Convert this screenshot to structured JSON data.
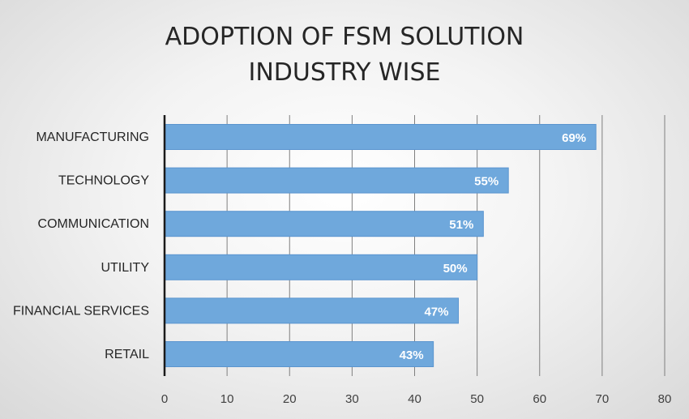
{
  "chart_data": {
    "type": "bar",
    "orientation": "horizontal",
    "title_lines": [
      "ADOPTION OF FSM SOLUTION",
      "INDUSTRY WISE"
    ],
    "categories": [
      "MANUFACTURING",
      "TECHNOLOGY",
      "COMMUNICATION",
      "UTILITY",
      "FINANCIAL SERVICES",
      "RETAIL"
    ],
    "values": [
      69,
      55,
      51,
      50,
      47,
      43
    ],
    "data_labels": [
      "69%",
      "55%",
      "51%",
      "50%",
      "47%",
      "43%"
    ],
    "xlim": [
      0,
      80
    ],
    "x_ticks": [
      0,
      10,
      20,
      30,
      40,
      50,
      60,
      70,
      80
    ],
    "grid": true,
    "legend": "none",
    "colors": {
      "bar": "#6fa8dc",
      "bar_edge": "#5b95cf",
      "grid": "#7f7f7f",
      "axis": "#1a1a1a"
    }
  }
}
